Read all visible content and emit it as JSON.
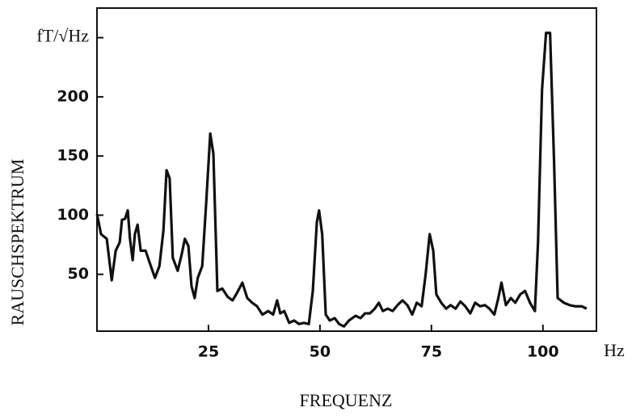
{
  "chart_data": {
    "type": "line",
    "x_title": "FREQUENZ",
    "y_title": "RAUSCHSPEKTRUM",
    "x_unit": "Hz",
    "xlim": [
      0,
      112
    ],
    "ylim": [
      2,
      275
    ],
    "xticks": [
      25,
      50,
      75,
      100
    ],
    "yticks": [
      50,
      100,
      150,
      200,
      {
        "value": 250,
        "label": "fT/√Hz"
      }
    ],
    "grid": false,
    "color": "#111111",
    "x": [
      0,
      0.9,
      2.2,
      3.3,
      4.2,
      5.1,
      5.6,
      6.3,
      6.9,
      7.4,
      8,
      8.5,
      9.1,
      9.8,
      10.9,
      11.8,
      13,
      14,
      14.9,
      15.6,
      16.3,
      17,
      18.1,
      19,
      19.7,
      20.5,
      21.2,
      21.9,
      22.6,
      23.6,
      24.5,
      25.4,
      26.1,
      27,
      28.1,
      29.3,
      30.4,
      31.5,
      32.6,
      33.7,
      34.8,
      35.9,
      37.1,
      38.4,
      39.5,
      40.4,
      41.1,
      42,
      43.1,
      44.2,
      45.3,
      46.4,
      47.5,
      48.4,
      49.3,
      49.8,
      50.5,
      51.3,
      52.2,
      53.3,
      54.3,
      55.4,
      56.5,
      58,
      59.1,
      60.1,
      61.2,
      62.3,
      63.2,
      64.1,
      65.2,
      66.3,
      67.4,
      68.5,
      69.6,
      70.7,
      71.7,
      72.8,
      73.7,
      74.6,
      75.4,
      76.1,
      77.2,
      78.3,
      79.3,
      80.4,
      81.5,
      82.6,
      83.7,
      84.8,
      85.9,
      87,
      88,
      89.1,
      90,
      90.7,
      91.7,
      92.8,
      93.8,
      94.9,
      96,
      97.1,
      98.2,
      98.9,
      99.8,
      100.7,
      101.6,
      102.5,
      103.3,
      104.7,
      106,
      107.2,
      108.7,
      109.8
    ],
    "values": [
      101,
      84,
      80,
      45,
      70,
      77,
      96,
      97,
      104,
      80,
      62,
      84,
      92,
      70,
      70,
      60,
      47,
      57,
      87,
      138,
      131,
      64,
      53,
      67,
      80,
      74,
      40,
      30,
      47,
      57,
      111,
      169,
      152,
      36,
      38,
      31,
      28,
      35,
      43,
      30,
      26,
      23,
      16,
      19,
      16,
      28,
      17,
      19,
      9,
      11,
      8,
      9,
      8,
      36,
      94,
      104,
      84,
      16,
      11,
      13,
      8,
      6,
      11,
      15,
      13,
      17,
      17,
      21,
      26,
      19,
      21,
      19,
      24,
      28,
      24,
      16,
      26,
      23,
      50,
      84,
      70,
      33,
      26,
      21,
      24,
      21,
      27,
      23,
      17,
      26,
      23,
      24,
      21,
      16,
      30,
      43,
      24,
      30,
      26,
      33,
      36,
      26,
      19,
      77,
      206,
      254,
      254,
      145,
      30,
      26,
      24,
      23,
      23,
      21
    ]
  }
}
